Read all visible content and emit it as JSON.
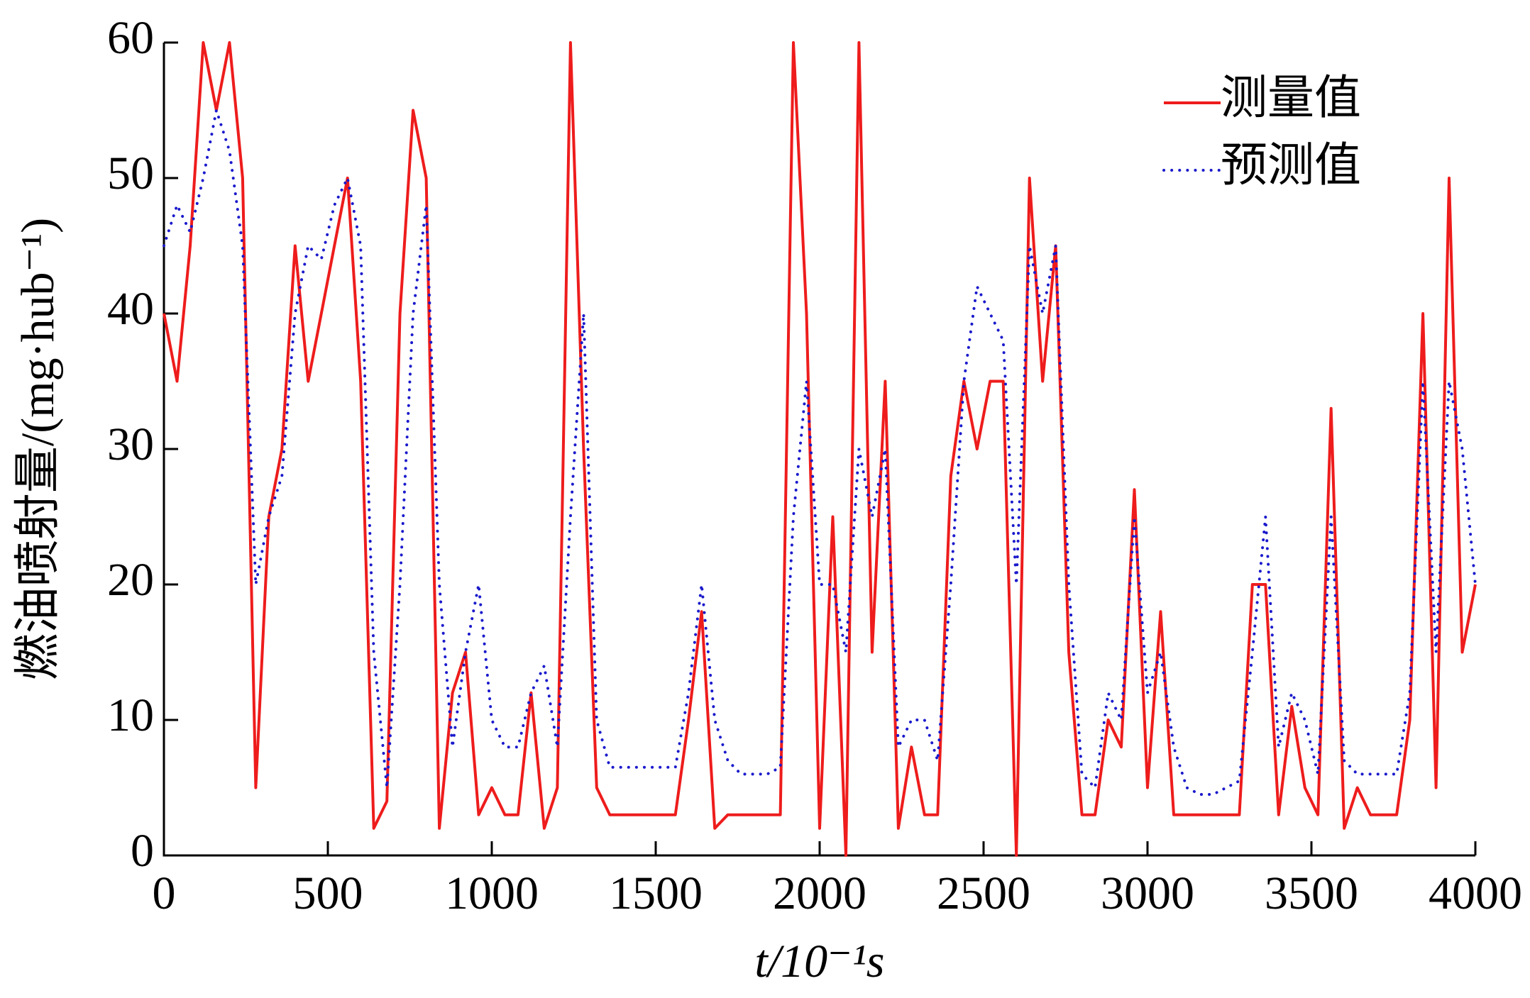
{
  "chart_data": {
    "type": "line",
    "xlabel": "t/10⁻¹s",
    "ylabel": "燃油喷射量/(mg·hub⁻¹)",
    "x": [
      0,
      40,
      80,
      120,
      160,
      200,
      240,
      280,
      320,
      360,
      400,
      440,
      480,
      520,
      560,
      600,
      640,
      680,
      720,
      760,
      800,
      840,
      880,
      920,
      960,
      1000,
      1040,
      1080,
      1120,
      1160,
      1200,
      1240,
      1280,
      1320,
      1360,
      1400,
      1440,
      1480,
      1520,
      1560,
      1600,
      1640,
      1680,
      1720,
      1760,
      1800,
      1840,
      1880,
      1920,
      1960,
      2000,
      2040,
      2080,
      2120,
      2160,
      2200,
      2240,
      2280,
      2320,
      2360,
      2400,
      2440,
      2480,
      2520,
      2560,
      2600,
      2640,
      2680,
      2720,
      2760,
      2800,
      2840,
      2880,
      2920,
      2960,
      3000,
      3040,
      3080,
      3120,
      3160,
      3200,
      3240,
      3280,
      3320,
      3360,
      3400,
      3440,
      3480,
      3520,
      3560,
      3600,
      3640,
      3680,
      3720,
      3760,
      3800,
      3840,
      3880,
      3920,
      3960,
      4000
    ],
    "series": [
      {
        "name": "测量值",
        "color": "#ee1c1c",
        "style": "solid",
        "values": [
          40,
          35,
          45,
          60,
          55,
          60,
          50,
          5,
          25,
          30,
          45,
          35,
          40,
          45,
          50,
          35,
          2,
          4,
          40,
          55,
          50,
          2,
          12,
          15,
          3,
          5,
          3,
          3,
          12,
          2,
          5,
          60,
          30,
          5,
          3,
          3,
          3,
          3,
          3,
          3,
          10,
          18,
          2,
          3,
          3,
          3,
          3,
          3,
          60,
          40,
          2,
          25,
          0,
          60,
          15,
          35,
          2,
          8,
          3,
          3,
          28,
          35,
          30,
          35,
          35,
          0,
          50,
          35,
          45,
          15,
          3,
          3,
          10,
          8,
          27,
          5,
          18,
          3,
          3,
          3,
          3,
          3,
          3,
          20,
          20,
          3,
          11,
          5,
          3,
          33,
          2,
          5,
          3,
          3,
          3,
          10,
          40,
          5,
          50,
          15,
          20
        ]
      },
      {
        "name": "预测值",
        "color": "#1a1acc",
        "style": "dotted",
        "values": [
          45,
          48,
          46,
          50,
          55,
          52,
          45,
          20,
          25,
          28,
          40,
          45,
          44,
          48,
          50,
          45,
          15,
          5,
          20,
          40,
          48,
          20,
          8,
          15,
          20,
          10,
          8,
          8,
          12,
          14,
          8,
          25,
          40,
          10,
          6.5,
          6.5,
          6.5,
          6.5,
          6.5,
          6.5,
          12,
          20,
          10,
          7,
          6,
          6,
          6,
          6.5,
          25,
          35,
          20,
          20,
          15,
          30,
          25,
          30,
          8,
          10,
          10,
          7,
          20,
          35,
          42,
          40,
          38,
          20,
          45,
          40,
          45,
          20,
          6,
          5,
          12,
          10,
          25,
          12,
          15,
          8,
          5,
          4.5,
          4.5,
          5,
          5.5,
          15,
          25,
          8,
          12,
          10,
          6,
          25,
          7,
          6,
          6,
          6,
          6,
          12,
          35,
          15,
          35,
          30,
          20
        ]
      }
    ],
    "xlim": [
      0,
      4000
    ],
    "xticks": [
      0,
      500,
      1000,
      1500,
      2000,
      2500,
      3000,
      3500,
      4000
    ],
    "ylim": [
      0,
      60
    ],
    "yticks": [
      0,
      10,
      20,
      30,
      40,
      50,
      60
    ],
    "legend": "upper right"
  }
}
